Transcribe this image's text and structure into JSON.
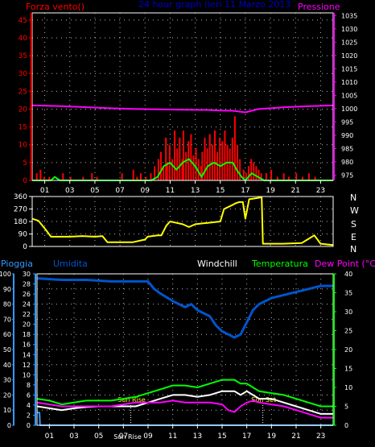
{
  "colors": {
    "wind": "#ff0000",
    "gust_bar": "#cc0000",
    "wind_avg": "#00ff00",
    "pressure": "#ff00ff",
    "title": "#0000cc",
    "winddir": "#ffff00",
    "humidity": "#0055cc",
    "rain": "#3399ff",
    "windchill": "#ffffff",
    "temperature": "#00ff00",
    "dewpoint": "#ff00ff",
    "frame": "#ffffff",
    "grid": "#ffffff",
    "axis_text": "#ffffff"
  },
  "labels": {
    "wind": "Forza vento()",
    "title": "24 hour graph (ieri 11 Marzo 2013",
    "pressure": "Pressione",
    "compass": [
      "N",
      "W",
      "S",
      "E",
      "N"
    ],
    "rain": "Pioggia",
    "humidity": "Umidita",
    "windchill": "Windchill",
    "temperature": "Temperatura",
    "dewpoint": "Dew Point (°C)",
    "sunrise": "Sun Rise",
    "sunset": "Sun Set",
    "sun_marker_axis": "Sun Rise"
  },
  "chart_data": [
    {
      "type": "bar",
      "name": "wind",
      "x_ticks": [
        "01",
        "03",
        "05",
        "07",
        "09",
        "11",
        "13",
        "15",
        "17",
        "19",
        "21",
        "23"
      ],
      "x_range": [
        0,
        24
      ],
      "ylim": [
        0,
        47
      ],
      "y_ticks": [
        0,
        5,
        10,
        15,
        20,
        25,
        30,
        35,
        40,
        45
      ],
      "y2lim": [
        973,
        1036
      ],
      "y2_ticks": [
        975,
        980,
        985,
        990,
        995,
        1000,
        1005,
        1010,
        1015,
        1020,
        1025,
        1030,
        1035
      ],
      "gusts": [
        [
          0.3,
          2
        ],
        [
          0.6,
          3
        ],
        [
          0.9,
          1
        ],
        [
          1.3,
          1
        ],
        [
          2.2,
          0
        ],
        [
          2.4,
          2
        ],
        [
          3.0,
          1
        ],
        [
          4.0,
          1
        ],
        [
          4.7,
          2
        ],
        [
          5.1,
          1
        ],
        [
          7.1,
          2
        ],
        [
          8.0,
          3
        ],
        [
          8.3,
          1
        ],
        [
          8.6,
          2
        ],
        [
          9.0,
          1
        ],
        [
          9.4,
          2
        ],
        [
          9.7,
          4
        ],
        [
          10.0,
          6
        ],
        [
          10.2,
          8
        ],
        [
          10.4,
          4
        ],
        [
          10.6,
          12
        ],
        [
          10.7,
          5
        ],
        [
          10.9,
          10
        ],
        [
          11.1,
          6
        ],
        [
          11.3,
          14
        ],
        [
          11.5,
          9
        ],
        [
          11.7,
          12
        ],
        [
          11.9,
          6
        ],
        [
          12.0,
          14
        ],
        [
          12.2,
          8
        ],
        [
          12.4,
          11
        ],
        [
          12.6,
          13
        ],
        [
          12.8,
          7
        ],
        [
          13.0,
          9
        ],
        [
          13.2,
          6
        ],
        [
          13.4,
          4
        ],
        [
          13.5,
          8
        ],
        [
          13.7,
          12
        ],
        [
          13.9,
          9
        ],
        [
          14.1,
          13
        ],
        [
          14.3,
          10
        ],
        [
          14.5,
          14
        ],
        [
          14.7,
          8
        ],
        [
          14.9,
          12
        ],
        [
          15.1,
          11
        ],
        [
          15.3,
          14
        ],
        [
          15.5,
          10
        ],
        [
          15.7,
          9
        ],
        [
          15.9,
          12
        ],
        [
          16.1,
          18
        ],
        [
          16.3,
          10
        ],
        [
          16.5,
          6
        ],
        [
          16.8,
          3
        ],
        [
          17.0,
          2
        ],
        [
          17.2,
          4
        ],
        [
          17.4,
          6
        ],
        [
          17.6,
          5
        ],
        [
          17.8,
          4
        ],
        [
          18.0,
          3
        ],
        [
          18.2,
          2
        ],
        [
          18.6,
          2
        ],
        [
          19.0,
          3
        ],
        [
          19.5,
          1
        ],
        [
          20.0,
          2
        ],
        [
          20.4,
          1
        ],
        [
          21.0,
          2
        ],
        [
          21.5,
          1
        ],
        [
          22.0,
          2
        ],
        [
          22.5,
          1
        ]
      ],
      "series": [
        {
          "name": "wind_avg",
          "points": [
            [
              0,
              0
            ],
            [
              1.5,
              0
            ],
            [
              1.8,
              1
            ],
            [
              2.2,
              0
            ],
            [
              9.5,
              0
            ],
            [
              10.0,
              1
            ],
            [
              10.5,
              4
            ],
            [
              11.0,
              5
            ],
            [
              11.5,
              3
            ],
            [
              12.0,
              5
            ],
            [
              12.5,
              6
            ],
            [
              13.0,
              4
            ],
            [
              13.5,
              1
            ],
            [
              14.0,
              4
            ],
            [
              14.5,
              5
            ],
            [
              15.0,
              4
            ],
            [
              15.5,
              5
            ],
            [
              16.0,
              5
            ],
            [
              16.3,
              3
            ],
            [
              16.7,
              1
            ],
            [
              17.0,
              0
            ],
            [
              17.5,
              2
            ],
            [
              18.0,
              1
            ],
            [
              18.5,
              0
            ],
            [
              24,
              0
            ]
          ]
        },
        {
          "name": "pressure",
          "points": [
            [
              0,
              1001.2
            ],
            [
              2,
              1001
            ],
            [
              4,
              1000.6
            ],
            [
              6,
              1000.2
            ],
            [
              8,
              999.9
            ],
            [
              10,
              999.7
            ],
            [
              12,
              999.6
            ],
            [
              14,
              999.5
            ],
            [
              15,
              999.3
            ],
            [
              16,
              999.2
            ],
            [
              17,
              998.6
            ],
            [
              17.5,
              999.2
            ],
            [
              18,
              999.8
            ],
            [
              20,
              1000.5
            ],
            [
              22,
              1000.9
            ],
            [
              24,
              1001.2
            ]
          ]
        }
      ]
    },
    {
      "type": "line",
      "name": "wind_direction",
      "x_range": [
        0,
        24
      ],
      "ylim": [
        0,
        360
      ],
      "y_ticks": [
        0,
        90,
        180,
        270,
        360
      ],
      "series": [
        {
          "name": "wind_direction",
          "points": [
            [
              0,
              200
            ],
            [
              0.5,
              185
            ],
            [
              1,
              130
            ],
            [
              1.5,
              70
            ],
            [
              2,
              70
            ],
            [
              3,
              70
            ],
            [
              4,
              75
            ],
            [
              5,
              70
            ],
            [
              5.6,
              75
            ],
            [
              6,
              30
            ],
            [
              8,
              30
            ],
            [
              9,
              50
            ],
            [
              9.2,
              70
            ],
            [
              10,
              80
            ],
            [
              10.3,
              80
            ],
            [
              10.7,
              150
            ],
            [
              11,
              180
            ],
            [
              11.5,
              170
            ],
            [
              12,
              160
            ],
            [
              12.5,
              140
            ],
            [
              13,
              160
            ],
            [
              14,
              170
            ],
            [
              15,
              180
            ],
            [
              15.3,
              270
            ],
            [
              16,
              300
            ],
            [
              16.2,
              310
            ],
            [
              16.5,
              320
            ],
            [
              16.8,
              320
            ],
            [
              17,
              200
            ],
            [
              17.3,
              340
            ],
            [
              18,
              350
            ],
            [
              18.3,
              355
            ],
            [
              18.4,
              20
            ],
            [
              20,
              20
            ],
            [
              21.5,
              25
            ],
            [
              22.5,
              80
            ],
            [
              23,
              20
            ],
            [
              24,
              10
            ]
          ]
        }
      ]
    },
    {
      "type": "line",
      "name": "temperature_humidity",
      "x_range": [
        0,
        24
      ],
      "rain_ylim": [
        0,
        30
      ],
      "rain_ticks": [
        0,
        2,
        4,
        6,
        8,
        10,
        12,
        14,
        16,
        18,
        20,
        22,
        24,
        26,
        28,
        30
      ],
      "hum_ylim": [
        0,
        100
      ],
      "hum_ticks": [
        0,
        10,
        20,
        30,
        40,
        50,
        60,
        70,
        80,
        90,
        100
      ],
      "temp_ylim": [
        0,
        40
      ],
      "temp_ticks": [
        0,
        5,
        10,
        15,
        20,
        25,
        30,
        35,
        40
      ],
      "sunrise_x": 7.6,
      "sunset_x": 18.3,
      "series": [
        {
          "name": "humidity",
          "points": [
            [
              0,
              97
            ],
            [
              2,
              96
            ],
            [
              4,
              96
            ],
            [
              6,
              95
            ],
            [
              8,
              95
            ],
            [
              9,
              95
            ],
            [
              9.5,
              90
            ],
            [
              10,
              87
            ],
            [
              11,
              82
            ],
            [
              12,
              78
            ],
            [
              12.5,
              80
            ],
            [
              13,
              76
            ],
            [
              14,
              72
            ],
            [
              14.5,
              66
            ],
            [
              15,
              62
            ],
            [
              15.5,
              60
            ],
            [
              16,
              58
            ],
            [
              16.5,
              60
            ],
            [
              17,
              68
            ],
            [
              17.5,
              76
            ],
            [
              18,
              80
            ],
            [
              19,
              84
            ],
            [
              20,
              86
            ],
            [
              21,
              88
            ],
            [
              22,
              90
            ],
            [
              23,
              92
            ],
            [
              24,
              92
            ]
          ]
        },
        {
          "name": "rain",
          "points": [
            [
              0,
              2.5
            ],
            [
              0.2,
              2.5
            ],
            [
              0.25,
              0
            ],
            [
              24,
              0
            ]
          ]
        },
        {
          "name": "windchill",
          "points": [
            [
              0,
              5
            ],
            [
              1,
              4.5
            ],
            [
              2,
              4
            ],
            [
              3,
              4.5
            ],
            [
              4,
              4.8
            ],
            [
              5,
              5
            ],
            [
              6,
              5
            ],
            [
              8,
              5
            ],
            [
              9,
              6
            ],
            [
              10,
              7
            ],
            [
              11,
              8
            ],
            [
              12,
              8
            ],
            [
              13,
              7.5
            ],
            [
              14,
              8
            ],
            [
              15,
              9
            ],
            [
              16,
              9
            ],
            [
              16.5,
              8
            ],
            [
              17,
              9
            ],
            [
              17.5,
              8
            ],
            [
              18,
              7
            ],
            [
              19,
              7
            ],
            [
              20,
              6
            ],
            [
              21,
              5
            ],
            [
              22,
              4
            ],
            [
              23,
              3
            ],
            [
              24,
              3
            ]
          ]
        },
        {
          "name": "temperature",
          "points": [
            [
              0,
              7
            ],
            [
              1,
              6.5
            ],
            [
              2,
              5.5
            ],
            [
              3,
              6
            ],
            [
              4,
              6.5
            ],
            [
              5,
              6.5
            ],
            [
              6,
              6.5
            ],
            [
              7,
              7
            ],
            [
              8,
              7.5
            ],
            [
              9,
              8.5
            ],
            [
              10,
              9.5
            ],
            [
              11,
              10.5
            ],
            [
              12,
              10.5
            ],
            [
              13,
              10
            ],
            [
              14,
              11
            ],
            [
              15,
              12
            ],
            [
              16,
              12
            ],
            [
              16.5,
              11
            ],
            [
              17,
              11
            ],
            [
              17.5,
              10
            ],
            [
              18,
              9
            ],
            [
              19,
              8.5
            ],
            [
              20,
              8
            ],
            [
              21,
              7
            ],
            [
              22,
              6
            ],
            [
              23,
              5
            ],
            [
              24,
              5
            ]
          ]
        },
        {
          "name": "dewpoint",
          "points": [
            [
              0,
              6
            ],
            [
              1,
              5.5
            ],
            [
              2,
              5
            ],
            [
              3,
              5
            ],
            [
              4,
              5
            ],
            [
              5,
              5
            ],
            [
              6,
              5
            ],
            [
              7,
              5.5
            ],
            [
              8,
              6
            ],
            [
              9,
              6
            ],
            [
              10,
              6
            ],
            [
              11,
              6.5
            ],
            [
              12,
              6
            ],
            [
              13,
              6
            ],
            [
              14,
              6
            ],
            [
              15,
              5.5
            ],
            [
              15.5,
              4
            ],
            [
              16,
              3.5
            ],
            [
              16.5,
              5
            ],
            [
              17,
              6
            ],
            [
              17.5,
              6.5
            ],
            [
              18,
              6
            ],
            [
              19,
              5.5
            ],
            [
              20,
              5
            ],
            [
              21,
              4
            ],
            [
              22,
              3
            ],
            [
              23,
              2
            ],
            [
              24,
              2
            ]
          ]
        }
      ]
    }
  ]
}
